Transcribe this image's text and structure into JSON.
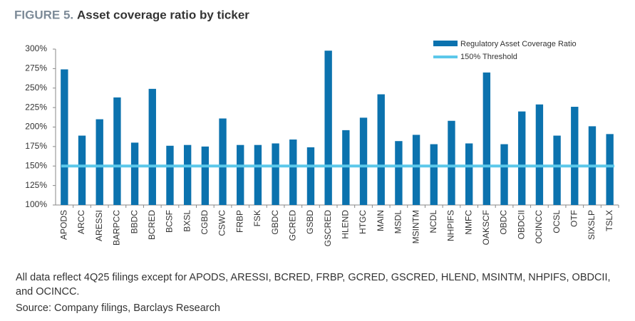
{
  "chart_data": {
    "type": "bar",
    "figure_label": "FIGURE 5.",
    "title": "Asset coverage ratio by ticker",
    "categories": [
      "APODS",
      "ARCC",
      "ARESSI",
      "BARPCC",
      "BBDC",
      "BCRED",
      "BCSF",
      "BXSL",
      "CGBD",
      "CSWC",
      "FRBP",
      "FSK",
      "GBDC",
      "GCRED",
      "GSBD",
      "GSCRED",
      "HLEND",
      "HTGC",
      "MAIN",
      "MSDL",
      "MSINTM",
      "NCDL",
      "NHPIFS",
      "NMFC",
      "OAKSCF",
      "OBDC",
      "OBDCII",
      "OCINCC",
      "OCSL",
      "OTF",
      "SIXSLP",
      "TSLX"
    ],
    "series": [
      {
        "name": "Regulatory Asset Coverage Ratio",
        "color": "#0b72ae",
        "values": [
          274,
          189,
          210,
          238,
          180,
          249,
          176,
          177,
          175,
          211,
          177,
          177,
          179,
          184,
          174,
          298,
          196,
          212,
          242,
          182,
          190,
          178,
          208,
          179,
          270,
          178,
          220,
          229,
          189,
          226,
          201,
          191
        ]
      }
    ],
    "threshold": {
      "name": "150% Threshold",
      "value": 150,
      "color": "#5cc8ea"
    },
    "ylim": [
      100,
      300
    ],
    "yticks": [
      {
        "value": 100,
        "label": "100%"
      },
      {
        "value": 125,
        "label": "125%"
      },
      {
        "value": 150,
        "label": "150%"
      },
      {
        "value": 175,
        "label": "175%"
      },
      {
        "value": 200,
        "label": "200%"
      },
      {
        "value": 225,
        "label": "225%"
      },
      {
        "value": 250,
        "label": "250%"
      },
      {
        "value": 275,
        "label": "275%"
      },
      {
        "value": 300,
        "label": "300%"
      }
    ],
    "grid": false,
    "legend": "top-right",
    "notes": "All data reflect 4Q25 filings except for APODS, ARESSI, BCRED, FRBP, GCRED, GSCRED, HLEND, MSINTM, NHPIFS, OBDCII, and OCINCC.",
    "source": "Source: Company filings, Barclays Research"
  }
}
